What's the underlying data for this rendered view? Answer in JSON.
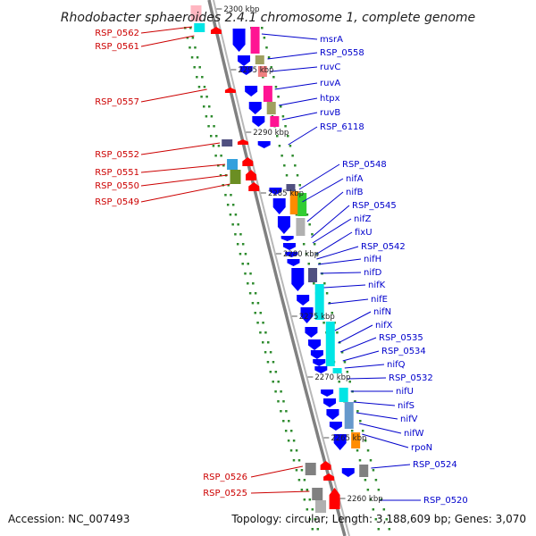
{
  "title": "Rhodobacter sphaeroides 2.4.1 chromosome 1, complete genome",
  "accession_text": "Accession: NC_007493",
  "topology_text": "Topology: circular; Length: 3,188,609 bp; Genes: 3,070",
  "colors": {
    "backbone": "#808080",
    "forward": "#0000ff",
    "reverse": "#ff0000",
    "gc_dots": "#2e8b2e",
    "forward_label": "#0000cc",
    "reverse_label": "#cc0000"
  },
  "ticks": [
    "2300 kbp",
    "2295 kbp",
    "2290 kbp",
    "2285 kbp",
    "2280 kbp",
    "2275 kbp",
    "2270 kbp",
    "2265 kbp",
    "2260 kbp"
  ],
  "reverse_genes": [
    "RSP_0562",
    "RSP_0561",
    "RSP_0557",
    "RSP_0552",
    "RSP_0551",
    "RSP_0550",
    "RSP_0549",
    "RSP_0526",
    "RSP_0525"
  ],
  "forward_genes": [
    "msrA",
    "RSP_0558",
    "ruvC",
    "ruvA",
    "htpx",
    "ruvB",
    "RSP_6118",
    "RSP_0548",
    "nifA",
    "nifB",
    "RSP_0545",
    "nifZ",
    "fixU",
    "RSP_0542",
    "nifH",
    "nifD",
    "nifK",
    "nifE",
    "nifN",
    "nifX",
    "RSP_0535",
    "RSP_0534",
    "nifQ",
    "RSP_0532",
    "nifU",
    "nifS",
    "nifV",
    "nifW",
    "rpoN",
    "RSP_0524",
    "RSP_0520"
  ]
}
